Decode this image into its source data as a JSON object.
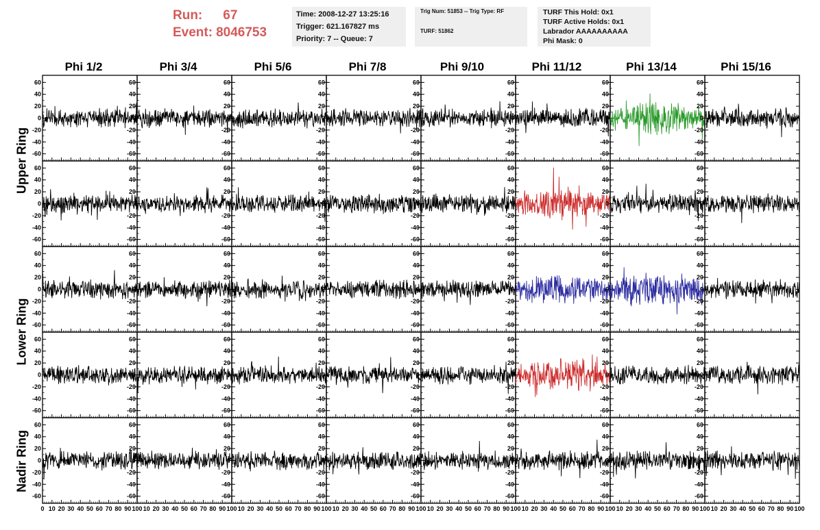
{
  "header": {
    "run_label": "Run:",
    "run_value": "67",
    "event_label": "Event:",
    "event_value": "8046753",
    "time": "Time: 2008-12-27 13:25:16",
    "trigger": "Trigger: 621.167827 ms",
    "priority": "Priority: 7 -- Queue: 7",
    "trig_num": "Trig Num: 51853 -- Trig Type: RF",
    "turf": "TURF: 51862",
    "turf_this_hold": "TURF This Hold: 0x1",
    "turf_active_holds": "TURF Active Holds: 0x1",
    "labrador": "Labrador AAAAAAAAAA",
    "phi_mask": "Phi Mask: 0"
  },
  "columns": [
    "Phi 1/2",
    "Phi 3/4",
    "Phi 5/6",
    "Phi 7/8",
    "Phi 9/10",
    "Phi 11/12",
    "Phi 13/14",
    "Phi 15/16"
  ],
  "row_groups": [
    "Upper Ring",
    "Lower Ring",
    "Nadir Ring"
  ],
  "colors": {
    "default": "#000000",
    "green": "#2a9a2a",
    "red": "#cc2a2a",
    "blue": "#2a2aa0",
    "run_text": "#d45a5a"
  },
  "chart_data": {
    "type": "line",
    "rows": 5,
    "cols": 8,
    "xlim": [
      0,
      100
    ],
    "ylim": [
      -65,
      65
    ],
    "y_ticks": [
      -60,
      -40,
      -20,
      0,
      20,
      40,
      60
    ],
    "x_ticks": [
      0,
      10,
      20,
      30,
      40,
      50,
      60,
      70,
      80,
      90,
      100
    ],
    "samples": 260,
    "amplitude_default": 11,
    "highlighted": [
      {
        "row": 0,
        "col": 6,
        "color": "green",
        "amplitude": 17
      },
      {
        "row": 1,
        "col": 5,
        "color": "red",
        "amplitude": 17
      },
      {
        "row": 2,
        "col": 5,
        "color": "blue",
        "amplitude": 16
      },
      {
        "row": 2,
        "col": 6,
        "color": "blue",
        "amplitude": 18
      },
      {
        "row": 3,
        "col": 5,
        "color": "red",
        "amplitude": 18
      }
    ]
  }
}
